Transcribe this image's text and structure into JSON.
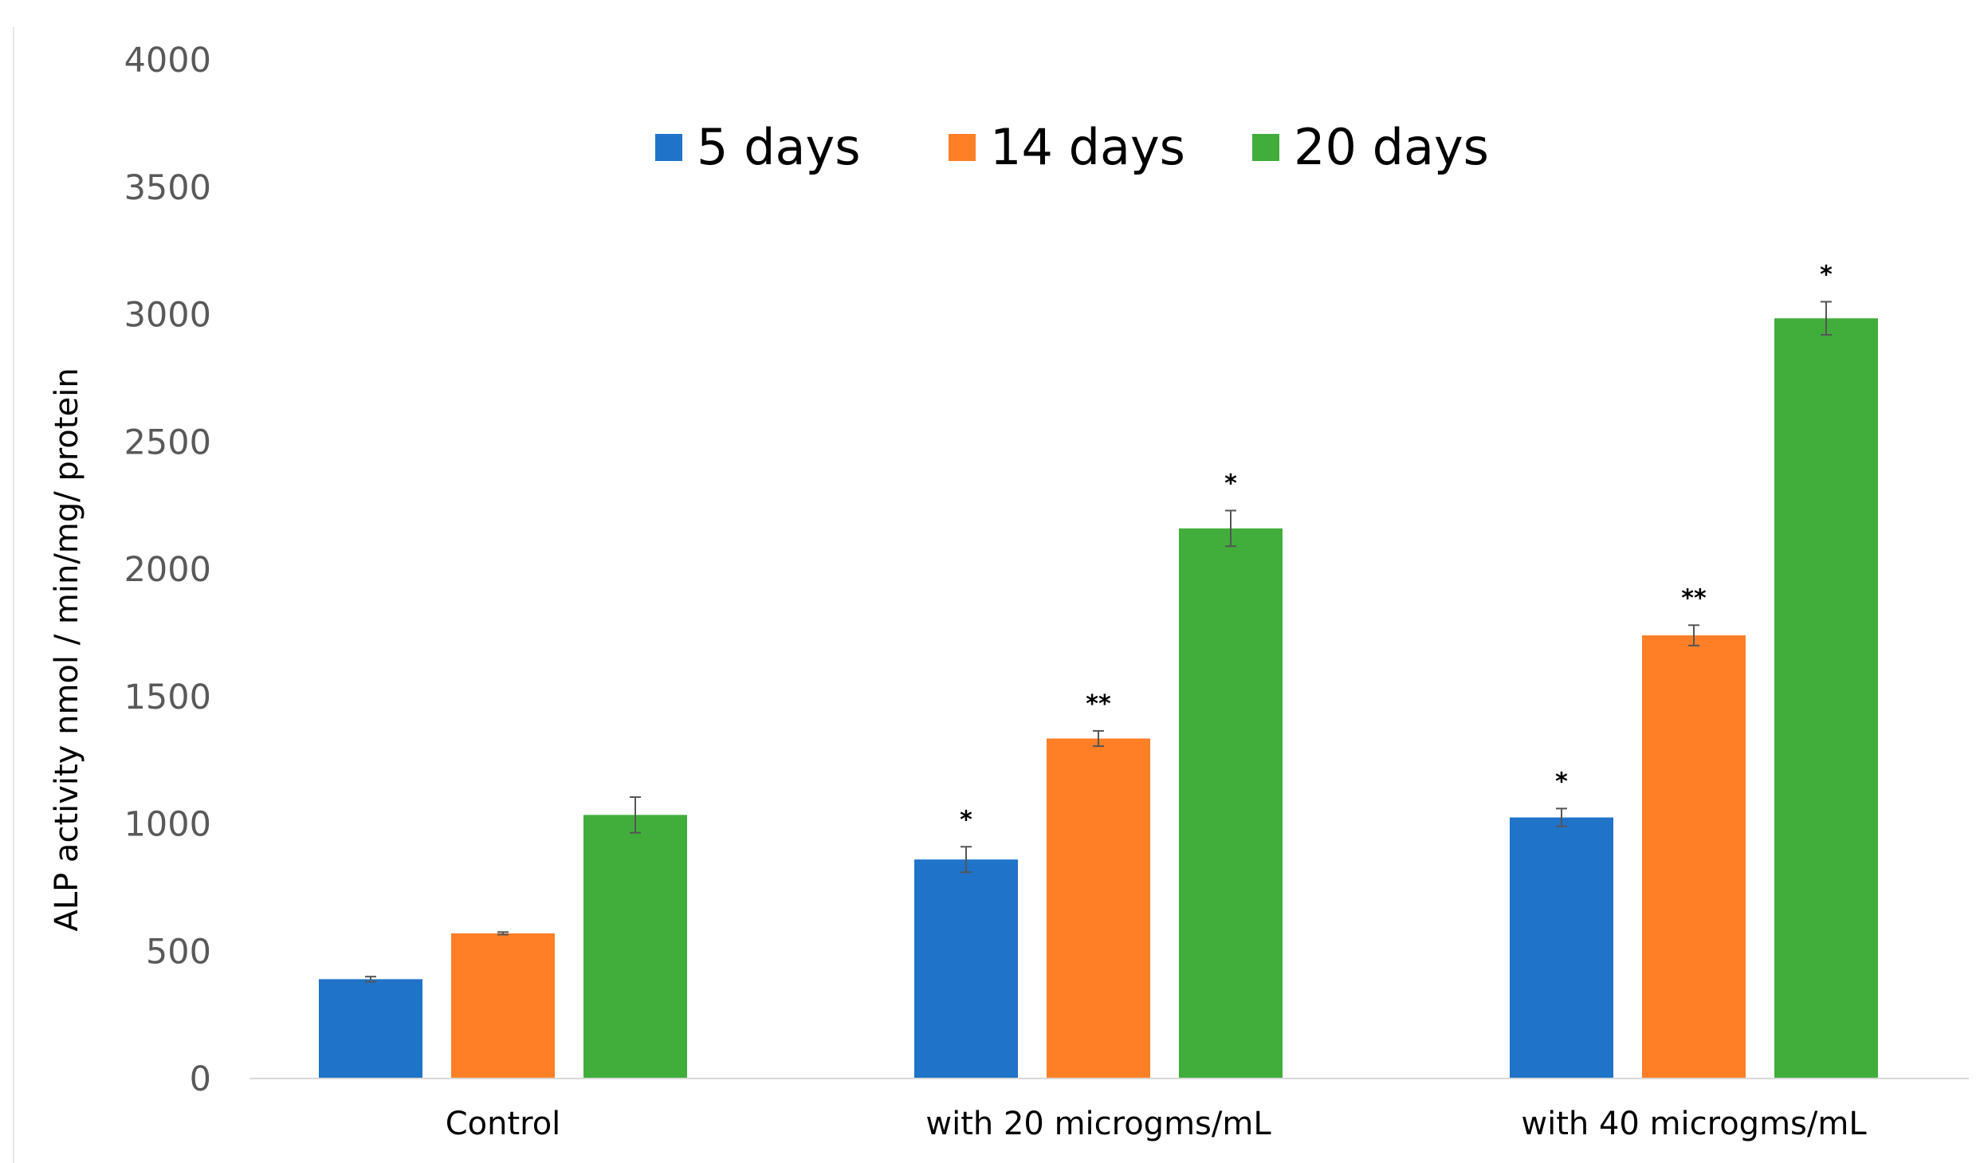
{
  "chart_data": {
    "type": "bar",
    "title": "",
    "xlabel": "",
    "ylabel": "ALP activity nmol / min/mg/ protein",
    "ylim": [
      0,
      4000
    ],
    "yticks": [
      "0",
      "500",
      "1000",
      "1500",
      "2000",
      "2500",
      "3000",
      "3500",
      "4000"
    ],
    "yticks_values": [
      0,
      500,
      1000,
      1500,
      2000,
      2500,
      3000,
      3500,
      4000
    ],
    "categories": [
      "Control",
      "with 20 microgms/mL",
      "with 40 microgms/mL"
    ],
    "legend_position": "top-center",
    "grid": false,
    "series": [
      {
        "name": "5 days",
        "color": "#1F73C9",
        "values": [
          390,
          860,
          1025
        ],
        "errors": [
          10,
          50,
          35
        ],
        "significance": [
          "",
          "*",
          "*"
        ]
      },
      {
        "name": "14 days",
        "color": "#FF7F27",
        "values": [
          570,
          1335,
          1740
        ],
        "errors": [
          5,
          30,
          40
        ],
        "significance": [
          "",
          "**",
          "**"
        ]
      },
      {
        "name": "20 days",
        "color": "#41AE3C",
        "values": [
          1035,
          2160,
          2985
        ],
        "errors": [
          70,
          70,
          65
        ],
        "significance": [
          "",
          "*",
          "*"
        ]
      }
    ]
  }
}
